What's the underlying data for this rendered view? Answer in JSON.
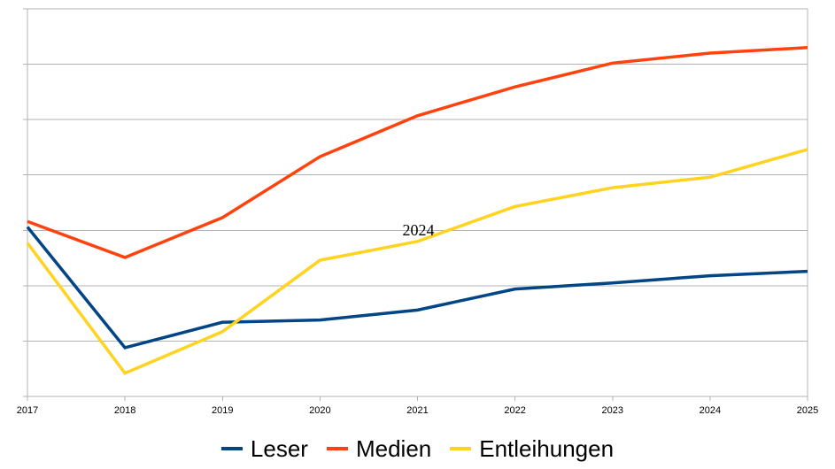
{
  "chart_data": {
    "type": "line",
    "categories": [
      "2017",
      "2018",
      "2019",
      "2020",
      "2021",
      "2022",
      "2023",
      "2024",
      "2025"
    ],
    "series": [
      {
        "name": "Leser",
        "color": "#004586",
        "values": [
          3.06,
          0.88,
          1.34,
          1.38,
          1.56,
          1.94,
          2.05,
          2.18,
          2.26
        ]
      },
      {
        "name": "Medien",
        "color": "#ff420e",
        "values": [
          3.16,
          2.51,
          3.23,
          4.33,
          5.07,
          5.59,
          6.02,
          6.2,
          6.3
        ]
      },
      {
        "name": "Entleihungen",
        "color": "#ffd320",
        "values": [
          2.77,
          0.42,
          1.17,
          2.46,
          2.8,
          3.43,
          3.77,
          3.96,
          4.46
        ]
      }
    ],
    "title": "",
    "xlabel": "",
    "ylabel": "",
    "ylim": [
      0,
      7
    ],
    "y_gridline_intervals": 7,
    "y_tick_labels_visible": false,
    "value_unit_note": "y-axis shows no numeric labels; series values are expressed in gridline units (1 unit = one horizontal gridline interval, 7 intervals between x-axis and top border)",
    "grid": "horizontal gridlines only, plot framed left and right",
    "legend_position": "bottom-center",
    "annotation": {
      "text": "2024",
      "anchor_category": "2021",
      "anchor_series": "Entleihungen",
      "position": "above-line"
    }
  },
  "colors": {
    "background": "#ffffff",
    "gridline": "#b3b3b3",
    "axis": "#b3b3b3",
    "tick_label": "#000000",
    "legend_text": "#000000",
    "annotation_text": "#000000"
  }
}
